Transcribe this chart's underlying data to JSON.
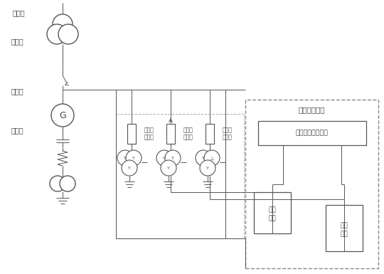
{
  "bg_color": "#ffffff",
  "line_color": "#555555",
  "text_color": "#444444",
  "labels": {
    "system_side": "系统侧",
    "transformer": "变压器",
    "breaker": "断路器",
    "generator": "发电机",
    "vt1_line1": "电压互",
    "vt1_line2": "感器一",
    "vt2_line1": "电压互",
    "vt2_line2": "感器二",
    "vt3_line1": "电压互",
    "vt3_line2": "感器三",
    "relay_device": "继电保护装置",
    "voltage_balance": "电压平衡比较模块",
    "filter1_line1": "滤波",
    "filter1_line2": "电路",
    "filter2_line1": "滤波",
    "filter2_line2": "电路"
  },
  "figsize": [
    5.4,
    3.85
  ],
  "dpi": 100
}
